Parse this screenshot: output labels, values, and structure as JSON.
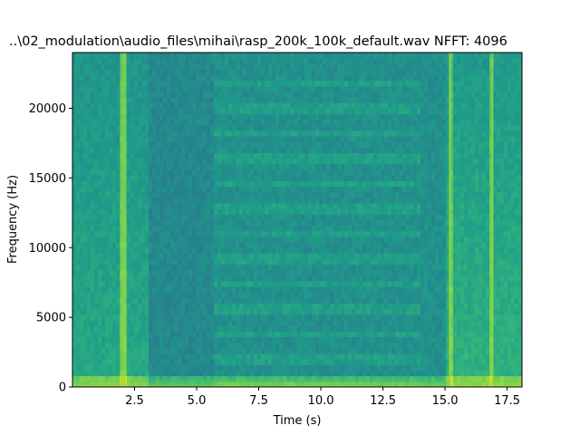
{
  "chart_data": {
    "type": "heatmap",
    "title": "..\\02_modulation\\audio_files\\mihai\\rasp_200k_100k_default.wav  NFFT: 4096",
    "xlabel": "Time (s)",
    "ylabel": "Frequency (Hz)",
    "xlim": [
      0,
      18.1
    ],
    "ylim": [
      0,
      24000
    ],
    "x_ticks": [
      2.5,
      5.0,
      7.5,
      10.0,
      12.5,
      15.0,
      17.5
    ],
    "x_tick_labels": [
      "2.5",
      "5.0",
      "7.5",
      "10.0",
      "12.5",
      "15.0",
      "17.5"
    ],
    "y_ticks": [
      0,
      5000,
      10000,
      15000,
      20000
    ],
    "y_tick_labels": [
      "0",
      "5000",
      "10000",
      "15000",
      "20000"
    ],
    "colormap": "viridis",
    "grid": false,
    "features": {
      "bright_broadband_segments_s": [
        [
          0,
          3.1
        ],
        [
          15.0,
          18.1
        ]
      ],
      "quiet_band_segment_s": [
        3.1,
        5.7
      ],
      "harmonic_pattern_segment_s": [
        5.7,
        14.0
      ],
      "strong_vertical_lines_s": [
        2.0,
        2.1,
        15.2,
        16.9
      ],
      "low_frequency_energy_band_hz": [
        0,
        700
      ]
    }
  }
}
